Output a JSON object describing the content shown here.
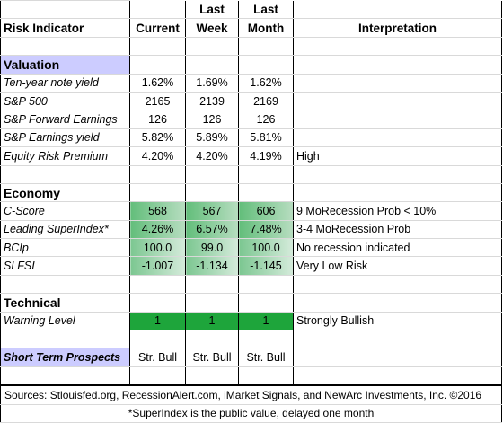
{
  "header": {
    "risk_indicator": "Risk Indicator",
    "current": "Current",
    "last_week_1": "Last",
    "last_week_2": "Week",
    "last_month_1": "Last",
    "last_month_2": "Month",
    "interpretation": "Interpretation"
  },
  "valuation": {
    "title": "Valuation",
    "rows": [
      {
        "label": "Ten-year note yield",
        "current": "1.62%",
        "week": "1.69%",
        "month": "1.62%",
        "interp": ""
      },
      {
        "label": "S&P 500",
        "current": "2165",
        "week": "2139",
        "month": "2169",
        "interp": ""
      },
      {
        "label": "S&P Forward Earnings",
        "current": "126",
        "week": "126",
        "month": "126",
        "interp": ""
      },
      {
        "label": "S&P Earnings yield",
        "current": "5.82%",
        "week": "5.89%",
        "month": "5.81%",
        "interp": ""
      },
      {
        "label": "Equity Risk Premium",
        "current": "4.20%",
        "week": "4.20%",
        "month": "4.19%",
        "interp": "High"
      }
    ]
  },
  "economy": {
    "title": "Economy",
    "rows": [
      {
        "label": "C-Score",
        "current": "568",
        "week": "567",
        "month": "606",
        "interp": "9 MoRecession Prob < 10%"
      },
      {
        "label": "Leading SuperIndex*",
        "current": "4.26%",
        "week": "6.57%",
        "month": "7.48%",
        "interp": "3-4 MoRecession Prob"
      },
      {
        "label": "BCIp",
        "current": "100.0",
        "week": "99.0",
        "month": "100.0",
        "interp": "No recession indicated"
      },
      {
        "label": "SLFSI",
        "current": "-1.007",
        "week": "-1.134",
        "month": "-1.145",
        "interp": "Very Low Risk"
      }
    ]
  },
  "technical": {
    "title": "Technical",
    "rows": [
      {
        "label": "Warning Level",
        "current": "1",
        "week": "1",
        "month": "1",
        "interp": "Strongly Bullish"
      }
    ]
  },
  "prospects": {
    "label": "Short Term Prospects",
    "current": "Str. Bull",
    "week": "Str. Bull",
    "month": "Str. Bull"
  },
  "footer": {
    "sources": "Sources: Stlouisfed.org, RecessionAlert.com, iMarket Signals, and NewArc Investments, Inc. ©2016",
    "note": "*SuperIndex is the public value, delayed one month"
  },
  "colors": {
    "section_fill": "#ccccff",
    "databar_green": "#63be7b",
    "signal_green": "#1ea53b"
  }
}
